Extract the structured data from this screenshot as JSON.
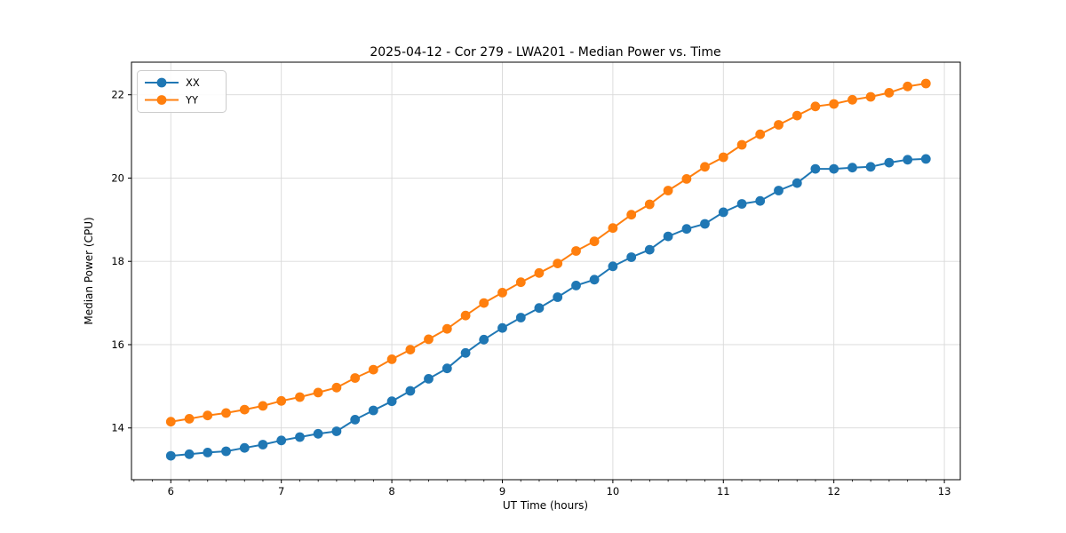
{
  "figure": {
    "title": "2025-04-12 - Cor 279 - LWA201 - Median Power vs. Time",
    "xlabel": "UT Time (hours)",
    "ylabel": "Median Power (CPU)"
  },
  "colors": {
    "background": "#ffffff",
    "grid": "#d9d9d9",
    "spine": "#000000",
    "text": "#000000",
    "legend_border": "#cccccc",
    "series_xx": "#1f77b4",
    "series_yy": "#ff7f0e"
  },
  "chart_data": {
    "type": "line",
    "title": "2025-04-12 - Cor 279 - LWA201 - Median Power vs. Time",
    "xlabel": "UT Time (hours)",
    "ylabel": "Median Power (CPU)",
    "grid": true,
    "legend_position": "upper left",
    "xlim": [
      5.644,
      13.144
    ],
    "ylim": [
      12.757,
      22.783
    ],
    "x_ticks": [
      6,
      7,
      8,
      9,
      10,
      11,
      12,
      13
    ],
    "y_ticks": [
      14,
      16,
      18,
      20,
      22
    ],
    "x_minor_step": 0.16667,
    "marker": "o",
    "x": [
      6.0,
      6.167,
      6.333,
      6.5,
      6.667,
      6.833,
      7.0,
      7.167,
      7.333,
      7.5,
      7.667,
      7.833,
      8.0,
      8.167,
      8.333,
      8.5,
      8.667,
      8.833,
      9.0,
      9.167,
      9.333,
      9.5,
      9.667,
      9.833,
      10.0,
      10.167,
      10.333,
      10.5,
      10.667,
      10.833,
      11.0,
      11.167,
      11.333,
      11.5,
      11.667,
      11.833,
      12.0,
      12.167,
      12.333,
      12.5,
      12.667,
      12.833
    ],
    "series": [
      {
        "name": "XX",
        "color": "#1f77b4",
        "values": [
          13.33,
          13.37,
          13.41,
          13.44,
          13.52,
          13.6,
          13.7,
          13.78,
          13.86,
          13.92,
          14.2,
          14.42,
          14.64,
          14.89,
          15.18,
          15.43,
          15.8,
          16.12,
          16.4,
          16.65,
          16.88,
          17.14,
          17.42,
          17.56,
          17.88,
          18.1,
          18.28,
          18.6,
          18.78,
          18.9,
          19.18,
          19.38,
          19.45,
          19.7,
          19.88,
          20.22,
          20.22,
          20.25,
          20.27,
          20.37,
          20.44,
          20.46
        ]
      },
      {
        "name": "YY",
        "color": "#ff7f0e",
        "values": [
          14.15,
          14.22,
          14.3,
          14.36,
          14.44,
          14.53,
          14.65,
          14.74,
          14.85,
          14.97,
          15.2,
          15.4,
          15.65,
          15.88,
          16.13,
          16.38,
          16.7,
          17.0,
          17.25,
          17.5,
          17.72,
          17.95,
          18.25,
          18.48,
          18.8,
          19.12,
          19.37,
          19.7,
          19.98,
          20.27,
          20.5,
          20.8,
          21.05,
          21.28,
          21.5,
          21.72,
          21.78,
          21.88,
          21.95,
          22.05,
          22.2,
          22.27
        ]
      }
    ]
  }
}
